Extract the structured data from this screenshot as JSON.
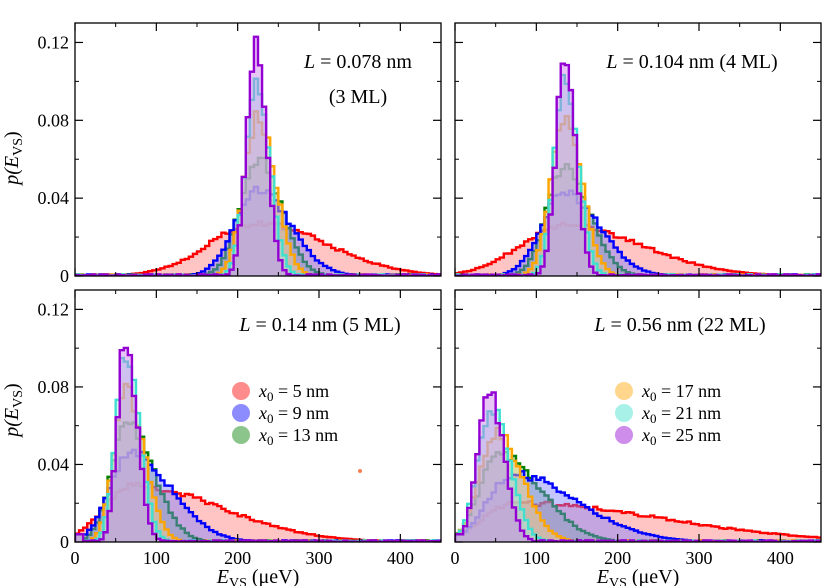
{
  "chart_data": {
    "type": "histogram",
    "shared": {
      "xlabel_main": "E",
      "xlabel_sub": "VS",
      "xlabel_unit": " (μeV)",
      "ylabel_prefix": "p(",
      "ylabel_main": "E",
      "ylabel_sub": "VS",
      "ylabel_suffix": ")",
      "xlim": [
        0,
        450
      ],
      "ylim": [
        0,
        0.13
      ],
      "xticks": [
        0,
        100,
        200,
        300,
        400
      ],
      "yticks": [
        0,
        0.04,
        0.08,
        0.12
      ],
      "xtick_labels": [
        "0",
        "100",
        "200",
        "300",
        "400"
      ],
      "ytick_labels": [
        "0",
        "0.04",
        "0.08",
        "0.12"
      ],
      "bin_width": 5
    },
    "series_meta": [
      {
        "name": "x0 = 5 nm",
        "label_main": "x",
        "label_sub": "0",
        "label_rest": " = 5 nm",
        "color": "#ff0000",
        "fill": "#ff7f7f"
      },
      {
        "name": "x0 = 9 nm",
        "label_main": "x",
        "label_sub": "0",
        "label_rest": " = 9 nm",
        "color": "#0000ff",
        "fill": "#7f7fff"
      },
      {
        "name": "x0 = 13 nm",
        "label_main": "x",
        "label_sub": "0",
        "label_rest": " = 13 nm",
        "color": "#008000",
        "fill": "#7fbf7f"
      },
      {
        "name": "x0 = 17 nm",
        "label_main": "x",
        "label_sub": "0",
        "label_rest": " = 17 nm",
        "color": "#ffa500",
        "fill": "#ffd27f"
      },
      {
        "name": "x0 = 21 nm",
        "label_main": "x",
        "label_sub": "0",
        "label_rest": " = 21 nm",
        "color": "#40e0d0",
        "fill": "#9fefe7"
      },
      {
        "name": "x0 = 25 nm",
        "label_main": "x",
        "label_sub": "0",
        "label_rest": " = 25 nm",
        "color": "#9400d3",
        "fill": "#c97fe9"
      }
    ],
    "panels": [
      {
        "annotation": [
          "L = 0.078 nm",
          "(3 ML)"
        ],
        "show_ylabels": true,
        "show_xlabels": false,
        "series": [
          {
            "peak": 0.027,
            "center": 225,
            "sigma_l": 60,
            "sigma_r": 85
          },
          {
            "peak": 0.044,
            "center": 225,
            "sigma_l": 28,
            "sigma_r": 40
          },
          {
            "peak": 0.061,
            "center": 225,
            "sigma_l": 22,
            "sigma_r": 28
          },
          {
            "peak": 0.082,
            "center": 225,
            "sigma_l": 17,
            "sigma_r": 21
          },
          {
            "peak": 0.103,
            "center": 223,
            "sigma_l": 13,
            "sigma_r": 16
          },
          {
            "peak": 0.121,
            "center": 222,
            "sigma_l": 11,
            "sigma_r": 13
          }
        ]
      },
      {
        "annotation": [
          "L = 0.104 nm (4 ML)"
        ],
        "show_ylabels": false,
        "show_xlabels": false,
        "series": [
          {
            "peak": 0.026,
            "center": 135,
            "sigma_l": 55,
            "sigma_r": 95
          },
          {
            "peak": 0.043,
            "center": 135,
            "sigma_l": 28,
            "sigma_r": 42
          },
          {
            "peak": 0.057,
            "center": 135,
            "sigma_l": 22,
            "sigma_r": 30
          },
          {
            "peak": 0.08,
            "center": 135,
            "sigma_l": 17,
            "sigma_r": 21
          },
          {
            "peak": 0.101,
            "center": 135,
            "sigma_l": 13,
            "sigma_r": 16
          },
          {
            "peak": 0.11,
            "center": 135,
            "sigma_l": 11,
            "sigma_r": 13
          }
        ]
      },
      {
        "annotation": [
          "L = 0.14 nm (5 ML)"
        ],
        "show_ylabels": true,
        "show_xlabels": true,
        "series": [
          {
            "peak": 0.029,
            "center": 70,
            "sigma_l": 35,
            "sigma_r": 110
          },
          {
            "peak": 0.046,
            "center": 68,
            "sigma_l": 25,
            "sigma_r": 50
          },
          {
            "peak": 0.061,
            "center": 65,
            "sigma_l": 20,
            "sigma_r": 32
          },
          {
            "peak": 0.078,
            "center": 63,
            "sigma_l": 15,
            "sigma_r": 22
          },
          {
            "peak": 0.097,
            "center": 62,
            "sigma_l": 12,
            "sigma_r": 17
          },
          {
            "peak": 0.106,
            "center": 62,
            "sigma_l": 10,
            "sigma_r": 14
          }
        ]
      },
      {
        "annotation": [
          "L = 0.56 nm (22 ML)"
        ],
        "show_ylabels": false,
        "show_xlabels": true,
        "series": [
          {
            "peak": 0.02,
            "center": 75,
            "sigma_l": 40,
            "sigma_r": 180
          },
          {
            "peak": 0.035,
            "center": 70,
            "sigma_l": 30,
            "sigma_r": 80
          },
          {
            "peak": 0.046,
            "center": 55,
            "sigma_l": 24,
            "sigma_r": 50
          },
          {
            "peak": 0.057,
            "center": 50,
            "sigma_l": 20,
            "sigma_r": 32
          },
          {
            "peak": 0.069,
            "center": 45,
            "sigma_l": 17,
            "sigma_r": 22
          },
          {
            "peak": 0.077,
            "center": 42,
            "sigma_l": 14,
            "sigma_r": 18
          }
        ]
      }
    ],
    "legend": {
      "left_panel_series": [
        0,
        1,
        2
      ],
      "right_panel_series": [
        3,
        4,
        5
      ]
    }
  }
}
